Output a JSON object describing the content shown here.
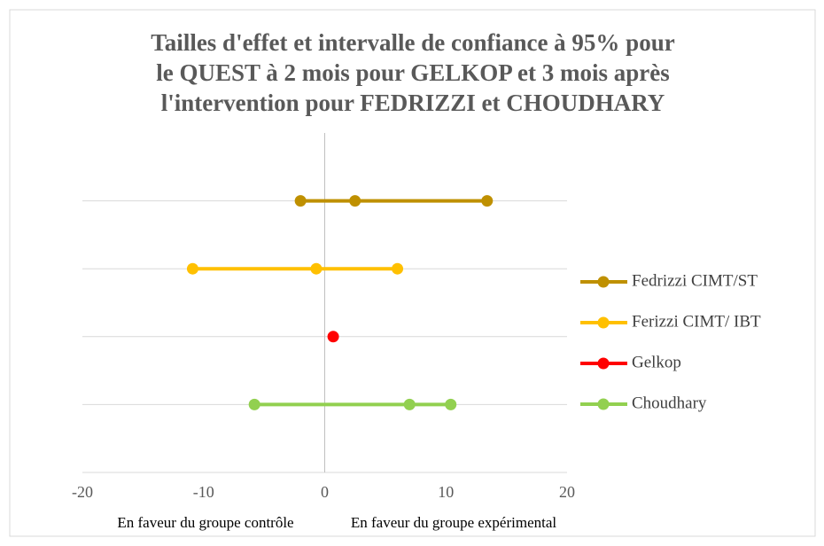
{
  "chart_data": {
    "type": "line",
    "title": [
      "Tailles d'effet et intervalle de confiance à 95% pour",
      "le QUEST à 2 mois pour GELKOP et 3 mois après",
      "l'intervention pour FEDRIZZI et CHOUDHARY"
    ],
    "annotations": [
      "En faveur du groupe contrôle",
      "En faveur du groupe expérimental"
    ],
    "xlim": [
      -20,
      20
    ],
    "xticks": [
      -20,
      -10,
      0,
      10,
      20
    ],
    "ylim": [
      0,
      5
    ],
    "yticks": [
      1,
      2,
      3,
      4
    ],
    "grid": true,
    "legend": "right",
    "series": [
      {
        "name": "Fedrizzi CIMT/ST",
        "color": "#bf9000",
        "x": [
          -2,
          2.5,
          13.4
        ],
        "values": [
          4,
          4,
          4
        ]
      },
      {
        "name": "Ferizzi CIMT/ IBT",
        "color": "#ffc000",
        "x": [
          -10.9,
          -0.7,
          6
        ],
        "values": [
          3,
          3,
          3
        ]
      },
      {
        "name": "Gelkop",
        "color": "#ff0000",
        "x": [
          0.7
        ],
        "values": [
          2
        ]
      },
      {
        "name": "Choudhary",
        "color": "#92d050",
        "x": [
          -5.8,
          7,
          10.4
        ],
        "values": [
          1,
          1,
          1
        ]
      }
    ]
  }
}
